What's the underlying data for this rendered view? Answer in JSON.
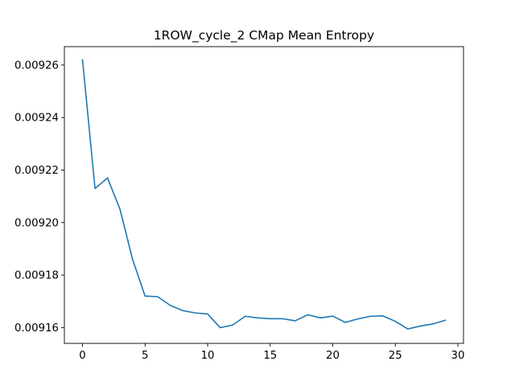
{
  "chart_data": {
    "type": "line",
    "title": "1ROW_cycle_2 CMap Mean Entropy",
    "xlabel": "",
    "ylabel": "",
    "xlim": [
      -1.45,
      30.45
    ],
    "ylim": [
      0.009154,
      0.009267
    ],
    "xticks": [
      0,
      5,
      10,
      15,
      20,
      25,
      30
    ],
    "xtick_labels": [
      "0",
      "5",
      "10",
      "15",
      "20",
      "25",
      "30"
    ],
    "yticks": [
      0.00916,
      0.00918,
      0.0092,
      0.00922,
      0.00924,
      0.00926
    ],
    "ytick_labels": [
      "0.00916",
      "0.00918",
      "0.00920",
      "0.00922",
      "0.00924",
      "0.00926"
    ],
    "grid": false,
    "legend": "none",
    "series": [
      {
        "color": "#1f77b4",
        "x": [
          0,
          1,
          2,
          3,
          4,
          5,
          6,
          7,
          8,
          9,
          10,
          11,
          12,
          13,
          14,
          15,
          16,
          17,
          18,
          19,
          20,
          21,
          22,
          23,
          24,
          25,
          26,
          27,
          28,
          29
        ],
        "y": [
          0.009262,
          0.009213,
          0.009217,
          0.009205,
          0.009186,
          0.009172,
          0.0091718,
          0.0091685,
          0.0091665,
          0.0091656,
          0.0091652,
          0.00916,
          0.009161,
          0.0091643,
          0.0091637,
          0.0091634,
          0.0091634,
          0.0091626,
          0.0091649,
          0.0091637,
          0.0091644,
          0.009162,
          0.0091633,
          0.0091643,
          0.0091645,
          0.0091624,
          0.0091595,
          0.0091606,
          0.0091614,
          0.0091628
        ]
      }
    ]
  }
}
